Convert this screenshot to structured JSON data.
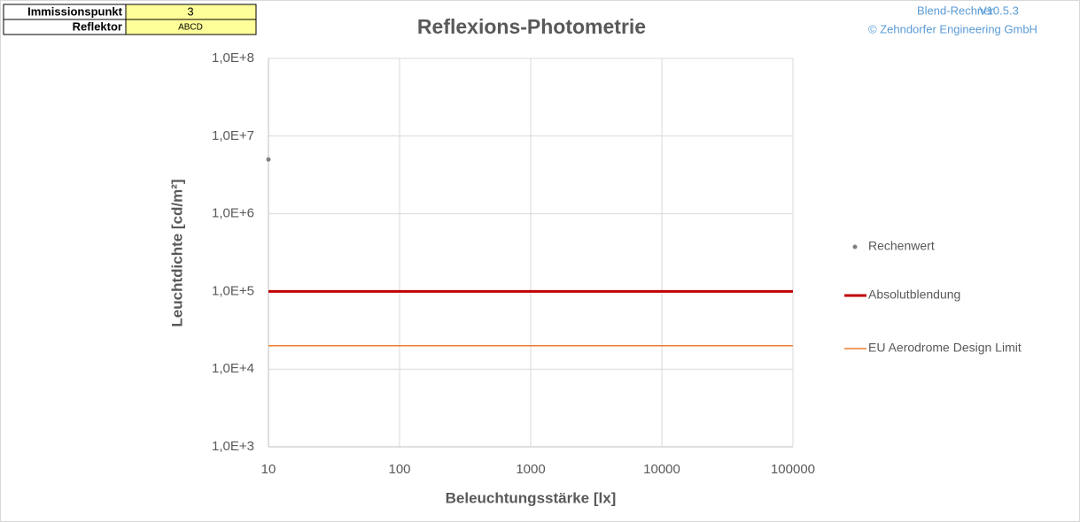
{
  "header": {
    "table": [
      [
        "Immissionspunkt",
        "3"
      ],
      [
        "Reflektor",
        "ABCD"
      ]
    ],
    "app": "Blend-Rechner",
    "version": "V10.5.3",
    "copyright": "© Zehndorfer Engineering GmbH"
  },
  "chart_data": {
    "type": "scatter",
    "title": "Reflexions-Photometrie",
    "x_label": "Beleuchtungsstärke [lx]",
    "y_label": "Leuchtdichte [cd/m²]",
    "xlog": true,
    "ylog": true,
    "xlim": [
      10,
      100000
    ],
    "ylim": [
      1000,
      100000000
    ],
    "xticks": [
      10,
      100,
      1000,
      10000,
      100000
    ],
    "yticks": [
      {
        "value": 1000,
        "label": "1,0E+3"
      },
      {
        "value": 10000,
        "label": "1,0E+4"
      },
      {
        "value": 100000,
        "label": "1,0E+5"
      },
      {
        "value": 1000000,
        "label": "1,0E+6"
      },
      {
        "value": 10000000,
        "label": "1,0E+7"
      },
      {
        "value": 100000000,
        "label": "1,0E+8"
      }
    ],
    "grid": true,
    "legend": "right",
    "series": [
      {
        "name": "Rechenwert",
        "color": "#7f7f7f",
        "mode": "markers",
        "x": [
          10
        ],
        "values": [
          5000000
        ]
      },
      {
        "name": "Absolutblendung",
        "color": "#c00000",
        "mode": "lines",
        "width": 3,
        "x": [
          10,
          100000
        ],
        "values": [
          100000,
          100000
        ]
      },
      {
        "name": "EU Aerodrome Design Limit",
        "color": "#ed7d31",
        "mode": "lines",
        "width": 1.5,
        "x": [
          10,
          100000
        ],
        "values": [
          20000,
          20000
        ]
      }
    ]
  }
}
